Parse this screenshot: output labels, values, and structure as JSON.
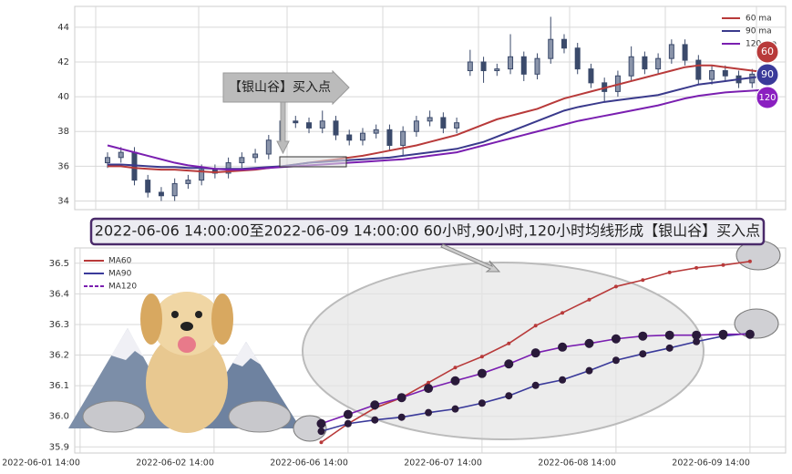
{
  "chart_data": [
    {
      "type": "candlestick",
      "categories": [
        null,
        null,
        null,
        null,
        null,
        null,
        null,
        null,
        null,
        null,
        null,
        null,
        null,
        null,
        null,
        null,
        null,
        null,
        null,
        null,
        null,
        null,
        null,
        null,
        null,
        null,
        null,
        null,
        null,
        null,
        null,
        null,
        null,
        null,
        null,
        null,
        null,
        null,
        null,
        null,
        null,
        null,
        null,
        null,
        null,
        null,
        null,
        null,
        null,
        null
      ],
      "open": [
        36.2,
        36.5,
        36.8,
        35.2,
        34.5,
        34.3,
        35.0,
        35.2,
        35.8,
        35.6,
        36.2,
        36.5,
        36.7,
        37.5,
        38.6,
        38.5,
        38.2,
        38.6,
        37.8,
        37.5,
        37.9,
        38.1,
        37.2,
        38.0,
        38.6,
        38.8,
        38.2,
        41.5,
        42.0,
        41.5,
        41.6,
        42.3,
        41.3,
        42.2,
        43.3,
        42.8,
        41.6,
        40.8,
        40.3,
        41.2,
        42.3,
        41.6,
        42.2,
        43.0,
        42.1,
        41.0,
        41.5,
        41.2,
        40.8,
        41.3
      ],
      "high": [
        36.8,
        37.1,
        37.1,
        35.5,
        34.8,
        35.3,
        35.5,
        36.1,
        36.1,
        36.5,
        36.8,
        37.0,
        37.8,
        39.4,
        38.9,
        38.8,
        39.2,
        38.9,
        38.1,
        38.2,
        38.4,
        38.4,
        38.3,
        38.9,
        39.2,
        39.1,
        38.8,
        42.7,
        42.3,
        41.9,
        43.6,
        42.6,
        42.5,
        44.6,
        43.6,
        43.1,
        41.9,
        41.1,
        41.5,
        42.9,
        42.6,
        42.5,
        43.3,
        43.3,
        42.4,
        41.8,
        41.8,
        41.5,
        41.6,
        41.7
      ],
      "low": [
        35.9,
        36.2,
        34.9,
        34.2,
        34.0,
        34.0,
        34.7,
        34.9,
        35.3,
        35.3,
        35.9,
        36.2,
        36.4,
        37.2,
        38.2,
        37.9,
        37.9,
        37.5,
        37.2,
        37.2,
        37.6,
        36.9,
        36.6,
        37.7,
        38.3,
        37.9,
        37.9,
        41.2,
        40.8,
        41.2,
        41.3,
        40.9,
        41.0,
        41.9,
        42.5,
        41.3,
        40.5,
        39.7,
        40.0,
        40.9,
        41.3,
        41.3,
        41.9,
        41.8,
        40.7,
        40.7,
        40.9,
        40.5,
        40.5,
        41.0
      ],
      "close": [
        36.5,
        36.8,
        35.2,
        34.5,
        34.3,
        35.0,
        35.2,
        35.8,
        35.6,
        36.2,
        36.5,
        36.7,
        37.5,
        38.6,
        38.5,
        38.2,
        38.6,
        37.8,
        37.5,
        37.9,
        38.1,
        37.2,
        38.0,
        38.6,
        38.8,
        38.2,
        38.5,
        42.0,
        41.5,
        41.6,
        42.3,
        41.3,
        42.2,
        43.3,
        42.8,
        41.6,
        40.8,
        40.3,
        41.2,
        42.3,
        41.6,
        42.2,
        43.0,
        42.1,
        41.0,
        41.5,
        41.2,
        40.8,
        41.3,
        41.4
      ],
      "candle_color": "#3b4a6b",
      "series": [
        {
          "name": "60 ma",
          "color": "#b83a3a",
          "values": [
            36.0,
            36.0,
            35.9,
            35.85,
            35.8,
            35.8,
            35.75,
            35.7,
            35.65,
            35.7,
            35.75,
            35.8,
            35.9,
            36.0,
            36.1,
            36.2,
            36.3,
            36.4,
            36.5,
            36.6,
            36.75,
            36.9,
            37.05,
            37.2,
            37.4,
            37.6,
            37.8,
            38.1,
            38.4,
            38.7,
            38.9,
            39.1,
            39.3,
            39.6,
            39.9,
            40.1,
            40.3,
            40.5,
            40.7,
            40.9,
            41.1,
            41.3,
            41.5,
            41.7,
            41.8,
            41.8,
            41.7,
            41.6,
            41.5,
            41.4
          ]
        },
        {
          "name": "90 ma",
          "color": "#3a3a8c",
          "values": [
            36.1,
            36.1,
            36.05,
            36.0,
            35.95,
            35.95,
            35.9,
            35.9,
            35.85,
            35.85,
            35.85,
            35.9,
            35.95,
            36.0,
            36.1,
            36.2,
            36.25,
            36.3,
            36.35,
            36.4,
            36.45,
            36.5,
            36.6,
            36.7,
            36.8,
            36.9,
            37.0,
            37.2,
            37.4,
            37.7,
            38.0,
            38.3,
            38.6,
            38.9,
            39.2,
            39.4,
            39.55,
            39.7,
            39.8,
            39.9,
            40.0,
            40.1,
            40.3,
            40.5,
            40.7,
            40.8,
            40.9,
            41.0,
            41.1,
            41.2
          ]
        },
        {
          "name": "120 ma",
          "color": "#7a1fb0",
          "values": [
            37.2,
            37.0,
            36.8,
            36.6,
            36.4,
            36.2,
            36.05,
            35.95,
            35.85,
            35.8,
            35.8,
            35.85,
            35.9,
            35.95,
            36.0,
            36.05,
            36.1,
            36.15,
            36.2,
            36.25,
            36.3,
            36.35,
            36.4,
            36.5,
            36.6,
            36.7,
            36.8,
            37.0,
            37.2,
            37.4,
            37.6,
            37.8,
            38.0,
            38.2,
            38.4,
            38.6,
            38.75,
            38.9,
            39.05,
            39.2,
            39.35,
            39.5,
            39.7,
            39.9,
            40.05,
            40.15,
            40.25,
            40.3,
            40.35,
            40.4
          ]
        }
      ],
      "ylim": [
        33.5,
        45.2
      ],
      "yticks": [
        34,
        36,
        38,
        40,
        42,
        44
      ],
      "grid": true,
      "legend": "upper right"
    },
    {
      "type": "line",
      "x": [
        9,
        10,
        11,
        12,
        13,
        14,
        15,
        16,
        17,
        18,
        19,
        20,
        21,
        22,
        23,
        24,
        25
      ],
      "series": [
        {
          "name": "MA60",
          "color": "#b83a3a",
          "values": [
            35.915,
            35.976,
            36.027,
            36.061,
            36.11,
            36.159,
            36.195,
            36.238,
            36.296,
            36.338,
            36.381,
            36.424,
            36.445,
            36.47,
            36.485,
            36.494,
            36.506
          ]
        },
        {
          "name": "MA90",
          "color": "#3a3a9a",
          "values": [
            35.951,
            35.976,
            35.988,
            35.997,
            36.012,
            36.024,
            36.043,
            36.067,
            36.101,
            36.119,
            36.149,
            36.183,
            36.204,
            36.223,
            36.244,
            36.262,
            36.271
          ]
        },
        {
          "name": "MA120",
          "color": "#7a1fb0",
          "values": [
            35.976,
            36.006,
            36.037,
            36.061,
            36.091,
            36.116,
            36.14,
            36.171,
            36.207,
            36.226,
            36.238,
            36.253,
            36.262,
            36.265,
            36.265,
            36.268,
            36.268
          ]
        }
      ],
      "xlim": [
        -0.2,
        26.33
      ],
      "xticks": [
        {
          "value": 0,
          "label": "2022-06-01 14:00"
        },
        {
          "value": 5,
          "label": "2022-06-02 14:00"
        },
        {
          "value": 10,
          "label": "2022-06-06 14:00"
        },
        {
          "value": 15,
          "label": "2022-06-07 14:00"
        },
        {
          "value": 20,
          "label": "2022-06-08 14:00"
        },
        {
          "value": 25,
          "label": "2022-06-09 14:00"
        }
      ],
      "ylim": [
        35.88,
        36.55
      ],
      "yticks": [
        {
          "value": 35.9,
          "label": "35.9"
        },
        {
          "value": 36,
          "label": "36.0"
        },
        36.1,
        36.2,
        36.3,
        36.4,
        36.5
      ],
      "grid": true,
      "legend": "upper left"
    }
  ],
  "annotations": {
    "buy_point_label": "【银山谷】买入点",
    "banner": "2022-06-06 14:00:00至2022-06-09 14:00:00 60小时,90小时,120小时均线形成【银山谷】买入点",
    "badges": [
      "60",
      "90",
      "120"
    ]
  }
}
